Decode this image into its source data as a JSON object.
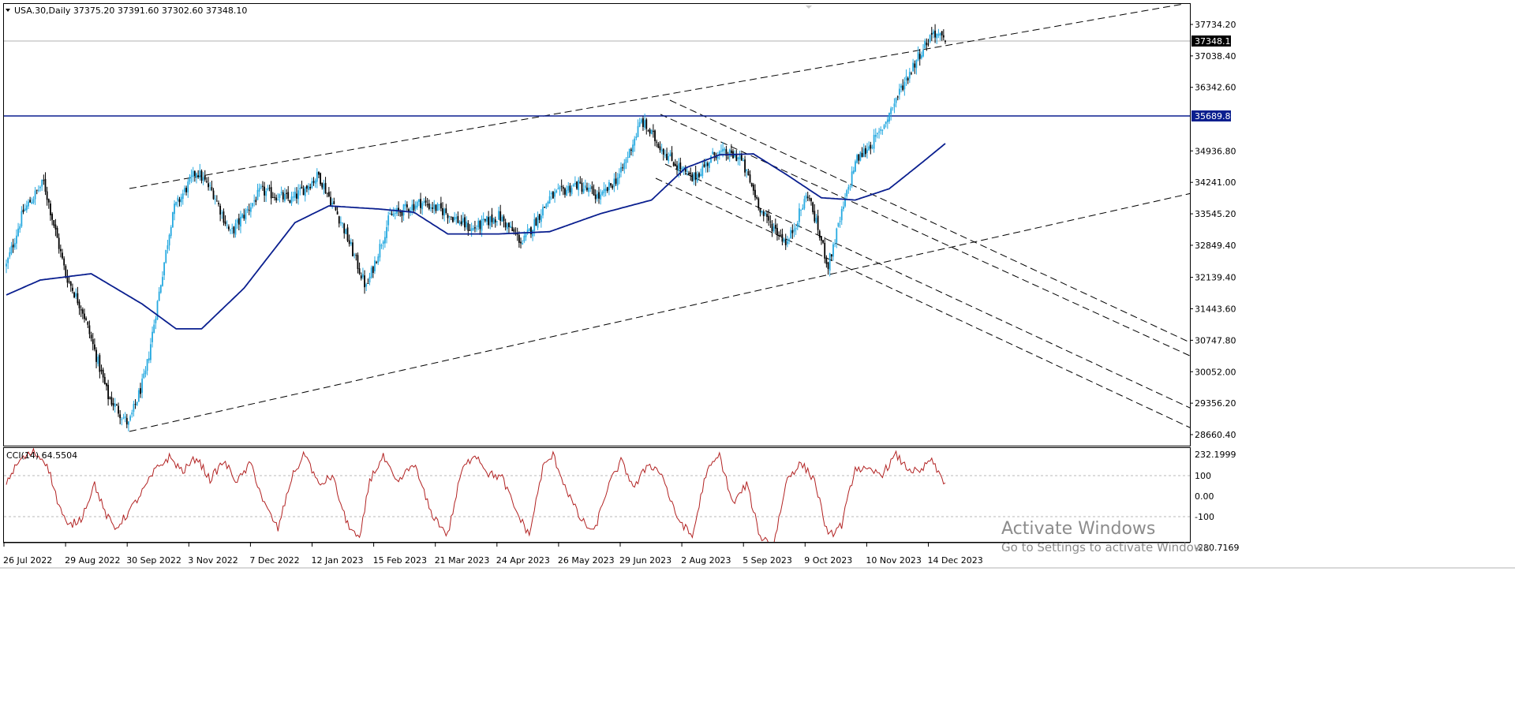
{
  "header": {
    "symbol_info": "USA.30,Daily  37375.20 37391.60 37302.60 37348.10",
    "collapse_icon": "triangle-down-icon"
  },
  "price_labels": {
    "current": "37348.10",
    "hline": "35689.84"
  },
  "indicator": {
    "label": "CCI(14) 64.5504"
  },
  "watermark": {
    "line1": "Activate Windows",
    "line2": "Go to Settings to activate Windows."
  },
  "colors": {
    "bull": "#26a9e0",
    "bear": "#000000",
    "ma": "#0a1f8f",
    "hline": "#0a1f8f",
    "cci": "#b22222",
    "label_bg": "#0a1f8f"
  },
  "chart_data": [
    {
      "type": "candlestick",
      "title": "USA.30,Daily",
      "x_tick_labels": [
        "26 Jul 2022",
        "29 Aug 2022",
        "30 Sep 2022",
        "3 Nov 2022",
        "7 Dec 2022",
        "12 Jan 2023",
        "15 Feb 2023",
        "21 Mar 2023",
        "24 Apr 2023",
        "26 May 2023",
        "29 Jun 2023",
        "2 Aug 2023",
        "5 Sep 2023",
        "9 Oct 2023",
        "10 Nov 2023",
        "14 Dec 2023"
      ],
      "y_tick_labels": [
        "37734.20",
        "37038.40",
        "36342.60",
        "34936.80",
        "34241.00",
        "33545.20",
        "32849.40",
        "32139.40",
        "31443.60",
        "30747.80",
        "30052.00",
        "29356.20",
        "28660.40"
      ],
      "ylim": [
        28400,
        38100
      ],
      "last_ohlc": {
        "open": 37375.2,
        "high": 37391.6,
        "low": 37302.6,
        "close": 37348.1
      },
      "horizontal_line": 35689.84,
      "close_anchors": [
        [
          0,
          32400
        ],
        [
          10,
          33600
        ],
        [
          22,
          34250
        ],
        [
          35,
          32200
        ],
        [
          45,
          31400
        ],
        [
          60,
          29500
        ],
        [
          72,
          28880
        ],
        [
          82,
          30000
        ],
        [
          98,
          33600
        ],
        [
          112,
          34500
        ],
        [
          122,
          34000
        ],
        [
          132,
          33100
        ],
        [
          150,
          34050
        ],
        [
          168,
          33850
        ],
        [
          184,
          34400
        ],
        [
          198,
          33300
        ],
        [
          212,
          31900
        ],
        [
          226,
          33500
        ],
        [
          244,
          33800
        ],
        [
          258,
          33600
        ],
        [
          274,
          33200
        ],
        [
          290,
          33500
        ],
        [
          304,
          32900
        ],
        [
          320,
          33900
        ],
        [
          336,
          34200
        ],
        [
          350,
          33900
        ],
        [
          362,
          34450
        ],
        [
          374,
          35600
        ],
        [
          390,
          34800
        ],
        [
          404,
          34300
        ],
        [
          418,
          34900
        ],
        [
          432,
          34800
        ],
        [
          446,
          33500
        ],
        [
          460,
          32900
        ],
        [
          472,
          34000
        ],
        [
          484,
          32400
        ],
        [
          500,
          34700
        ],
        [
          514,
          35300
        ],
        [
          528,
          36400
        ],
        [
          538,
          37100
        ],
        [
          546,
          37580
        ],
        [
          553,
          37348
        ]
      ],
      "moving_average": {
        "type": "line",
        "anchors": [
          [
            0,
            31750
          ],
          [
            20,
            32080
          ],
          [
            50,
            32220
          ],
          [
            80,
            31550
          ],
          [
            100,
            31000
          ],
          [
            115,
            31000
          ],
          [
            140,
            31900
          ],
          [
            170,
            33350
          ],
          [
            190,
            33720
          ],
          [
            220,
            33650
          ],
          [
            240,
            33580
          ],
          [
            260,
            33100
          ],
          [
            290,
            33100
          ],
          [
            320,
            33150
          ],
          [
            350,
            33550
          ],
          [
            380,
            33850
          ],
          [
            400,
            34560
          ],
          [
            420,
            34850
          ],
          [
            440,
            34870
          ],
          [
            460,
            34400
          ],
          [
            480,
            33900
          ],
          [
            500,
            33850
          ],
          [
            520,
            34100
          ],
          [
            540,
            34700
          ],
          [
            553,
            35100
          ]
        ]
      },
      "trend_lines": [
        {
          "name": "upper-channel",
          "from": [
            164,
            239
          ],
          "to": [
            1500,
            5
          ]
        },
        {
          "name": "lower-channel",
          "from": [
            164,
            547
          ],
          "to": [
            1510,
            245
          ]
        },
        {
          "name": "desc-channel-top",
          "from": [
            849,
            127
          ],
          "to": [
            1510,
            435
          ]
        },
        {
          "name": "desc-channel-middle",
          "from": [
            837,
            145
          ],
          "to": [
            1510,
            452
          ]
        },
        {
          "name": "desc-channel-lower-1",
          "from": [
            843,
            208
          ],
          "to": [
            1510,
            518
          ]
        },
        {
          "name": "desc-channel-lower-2",
          "from": [
            831,
            226
          ],
          "to": [
            1510,
            543
          ]
        }
      ]
    },
    {
      "type": "line",
      "name": "CCI(14) 64.5504",
      "y_tick_labels": [
        "232.1999",
        "100",
        "0.00",
        "-100",
        "-280.7169"
      ],
      "ylim": [
        -280.7169,
        232.1999
      ],
      "levels": [
        100,
        -100
      ],
      "last_value": 64.5504,
      "anchors": [
        [
          0,
          70
        ],
        [
          8,
          175
        ],
        [
          16,
          215
        ],
        [
          24,
          160
        ],
        [
          30,
          -20
        ],
        [
          36,
          -150
        ],
        [
          44,
          -110
        ],
        [
          52,
          60
        ],
        [
          58,
          -80
        ],
        [
          64,
          -160
        ],
        [
          72,
          -80
        ],
        [
          80,
          20
        ],
        [
          88,
          130
        ],
        [
          96,
          190
        ],
        [
          104,
          120
        ],
        [
          112,
          190
        ],
        [
          120,
          80
        ],
        [
          128,
          170
        ],
        [
          136,
          70
        ],
        [
          144,
          160
        ],
        [
          152,
          -40
        ],
        [
          160,
          -160
        ],
        [
          168,
          90
        ],
        [
          176,
          210
        ],
        [
          184,
          50
        ],
        [
          192,
          100
        ],
        [
          200,
          -120
        ],
        [
          208,
          -220
        ],
        [
          214,
          80
        ],
        [
          222,
          190
        ],
        [
          230,
          60
        ],
        [
          240,
          160
        ],
        [
          250,
          -80
        ],
        [
          260,
          -190
        ],
        [
          268,
          120
        ],
        [
          276,
          210
        ],
        [
          284,
          110
        ],
        [
          292,
          90
        ],
        [
          300,
          -70
        ],
        [
          308,
          -190
        ],
        [
          316,
          140
        ],
        [
          322,
          200
        ],
        [
          330,
          30
        ],
        [
          338,
          -110
        ],
        [
          346,
          -180
        ],
        [
          354,
          40
        ],
        [
          362,
          170
        ],
        [
          370,
          40
        ],
        [
          378,
          160
        ],
        [
          386,
          110
        ],
        [
          394,
          -90
        ],
        [
          404,
          -200
        ],
        [
          412,
          110
        ],
        [
          420,
          200
        ],
        [
          428,
          -40
        ],
        [
          436,
          60
        ],
        [
          444,
          -200
        ],
        [
          452,
          -230
        ],
        [
          460,
          90
        ],
        [
          468,
          160
        ],
        [
          476,
          80
        ],
        [
          484,
          -200
        ],
        [
          492,
          -140
        ],
        [
          500,
          140
        ],
        [
          508,
          120
        ],
        [
          516,
          110
        ],
        [
          524,
          200
        ],
        [
          530,
          140
        ],
        [
          538,
          110
        ],
        [
          544,
          180
        ],
        [
          550,
          100
        ],
        [
          553,
          64.55
        ]
      ]
    }
  ]
}
